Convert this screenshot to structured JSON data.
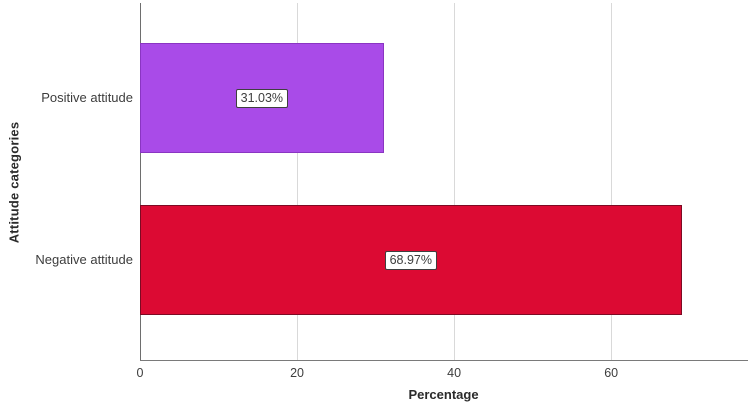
{
  "chart_data": {
    "type": "bar",
    "orientation": "horizontal",
    "title": "",
    "xlabel": "Percentage",
    "ylabel": "Attitude categories",
    "categories": [
      "Positive attitude",
      "Negative attitude"
    ],
    "values": [
      31.03,
      68.97
    ],
    "value_labels": [
      "31.03%",
      "68.97%"
    ],
    "bar_colors": [
      "#a94be8",
      "#dc0a33"
    ],
    "bar_border_colors": [
      "#8a35c2",
      "#7d0a23"
    ],
    "xticks": [
      0,
      20,
      40,
      60
    ],
    "xlim": [
      0,
      77.3
    ],
    "grid": "vertical-gridlines-only",
    "legend": "none",
    "colors": {
      "axis_line": "#6e6e6e",
      "gridline": "#d9d9d9",
      "text": "#3d3d3d",
      "background": "#ffffff"
    }
  }
}
